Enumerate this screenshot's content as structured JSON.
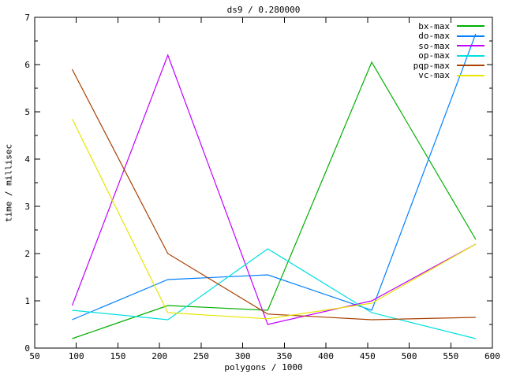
{
  "chart_data": {
    "type": "line",
    "title": "ds9 / 0.280000",
    "xlabel": "polygons / 1000",
    "ylabel": "time / millisec",
    "xlim": [
      50,
      600
    ],
    "ylim": [
      0,
      7
    ],
    "xticks": [
      50,
      100,
      150,
      200,
      250,
      300,
      350,
      400,
      450,
      500,
      550,
      600
    ],
    "yticks": [
      0,
      1,
      2,
      3,
      4,
      5,
      6,
      7
    ],
    "y_minor_step": 0.5,
    "grid": false,
    "legend_position": "top-right-inside",
    "x": [
      95,
      210,
      330,
      455,
      580
    ],
    "series": [
      {
        "name": "bx-max",
        "color": "#00b000",
        "values": [
          0.2,
          0.9,
          0.8,
          6.05,
          2.3
        ]
      },
      {
        "name": "do-max",
        "color": "#0080ff",
        "values": [
          0.6,
          1.45,
          1.55,
          0.8,
          6.65
        ]
      },
      {
        "name": "so-max",
        "color": "#c000ff",
        "values": [
          0.9,
          6.2,
          0.5,
          1.0,
          2.2
        ]
      },
      {
        "name": "op-max",
        "color": "#00e0e0",
        "values": [
          0.8,
          0.6,
          2.1,
          0.75,
          0.2
        ]
      },
      {
        "name": "pqp-max",
        "color": "#a84000",
        "values": [
          5.9,
          2.0,
          0.72,
          0.6,
          0.65
        ]
      },
      {
        "name": "vc-max",
        "color": "#e6e600",
        "values": [
          4.85,
          0.75,
          0.62,
          0.95,
          2.2
        ]
      }
    ],
    "colors": {
      "background": "#ffffff",
      "axis": "#000000",
      "text": "#000000"
    }
  }
}
